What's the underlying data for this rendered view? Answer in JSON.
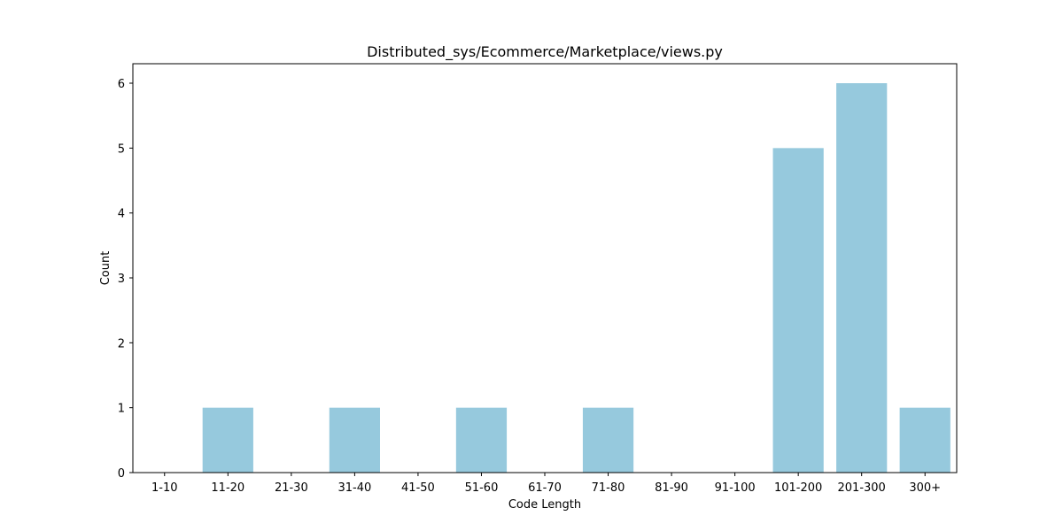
{
  "chart_data": {
    "type": "bar",
    "title": "Distributed_sys/Ecommerce/Marketplace/views.py",
    "xlabel": "Code Length",
    "ylabel": "Count",
    "categories": [
      "1-10",
      "11-20",
      "21-30",
      "31-40",
      "41-50",
      "51-60",
      "61-70",
      "71-80",
      "81-90",
      "91-100",
      "101-200",
      "201-300",
      "300+"
    ],
    "values": [
      0,
      1,
      0,
      1,
      0,
      1,
      0,
      1,
      0,
      0,
      5,
      6,
      1
    ],
    "ylim": [
      0,
      6.3
    ],
    "yticks": [
      0,
      1,
      2,
      3,
      4,
      5,
      6
    ],
    "bar_color": "#96c9dd",
    "grid": false,
    "legend": "none"
  }
}
